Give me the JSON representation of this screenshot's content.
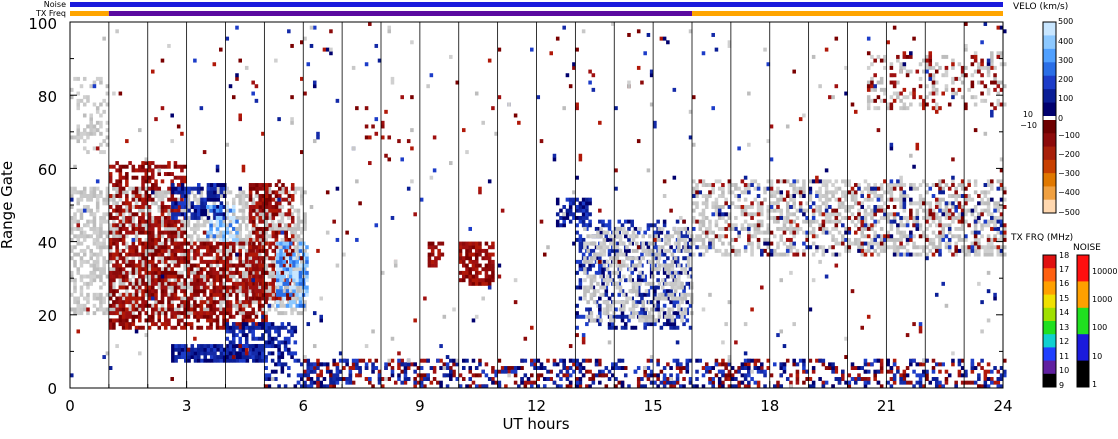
{
  "chart_data": {
    "type": "heatmap",
    "title": "",
    "xlabel": "UT hours",
    "ylabel": "Range Gate",
    "xlim": [
      0,
      24
    ],
    "ylim": [
      0,
      100
    ],
    "x_ticks": [
      "0",
      "3",
      "6",
      "9",
      "12",
      "15",
      "18",
      "21",
      "24"
    ],
    "y_ticks": [
      "0",
      "20",
      "40",
      "60",
      "80",
      "100"
    ],
    "hour_lines": [
      1,
      2,
      3,
      4,
      5,
      6,
      7,
      8,
      9,
      10,
      11,
      12,
      13,
      14,
      15,
      16,
      17,
      18,
      19,
      20,
      21,
      22,
      23
    ],
    "status_bars": {
      "noise_label": "Noise",
      "txfreq_label": "TX Freq",
      "noise_segments": [
        {
          "start": 0,
          "end": 24,
          "color": "#1a1adc"
        }
      ],
      "txfreq_segments": [
        {
          "start": 0,
          "end": 1,
          "color": "#ffa500"
        },
        {
          "start": 1,
          "end": 16,
          "color": "#5a0aa0"
        },
        {
          "start": 16,
          "end": 24,
          "color": "#ffa500"
        }
      ]
    },
    "velocity_colorbar": {
      "title": "VELO (km/s)",
      "ticks": [
        "500",
        "400",
        "300",
        "200",
        "100",
        "10",
        "0",
        "−10",
        "−100",
        "−200",
        "−300",
        "−400",
        "−500"
      ],
      "positive_colors": [
        "#c8e6ff",
        "#8cc8ff",
        "#50a0ff",
        "#2a6ee6",
        "#1c3cc8",
        "#0a1e96",
        "#00006e"
      ],
      "negative_colors": [
        "#6e0000",
        "#8c0a0a",
        "#a8200a",
        "#c84000",
        "#e07800",
        "#f0a040",
        "#ffd8b0"
      ]
    },
    "txfreq_colorbar": {
      "title": "TX FRQ (MHz)",
      "ticks": [
        "18",
        "17",
        "16",
        "15",
        "14",
        "13",
        "12",
        "11",
        "10",
        "9"
      ],
      "colors": [
        "#e01010",
        "#ff6010",
        "#ffa000",
        "#f0e000",
        "#a0e000",
        "#20e020",
        "#10d0d0",
        "#2040ff",
        "#6020a0",
        "#000000"
      ]
    },
    "noise_colorbar": {
      "title": "NOISE",
      "ticks": [
        "10000",
        "1000",
        "100",
        "10",
        "1"
      ],
      "colors": [
        "#ff1010",
        "#ffa000",
        "#20e020",
        "#1a1adc",
        "#000000"
      ]
    },
    "regions": [
      {
        "kind": "gray",
        "x0": 0.0,
        "x1": 6.0,
        "y0": 20,
        "y1": 55,
        "density": 0.55
      },
      {
        "kind": "gray",
        "x0": 0.0,
        "x1": 1.0,
        "y0": 64,
        "y1": 85,
        "density": 0.25
      },
      {
        "kind": "red",
        "x0": 1.0,
        "x1": 5.0,
        "y0": 16,
        "y1": 40,
        "density": 0.6
      },
      {
        "kind": "red",
        "x0": 1.0,
        "x1": 3.0,
        "y0": 40,
        "y1": 62,
        "density": 0.45
      },
      {
        "kind": "red",
        "x0": 4.6,
        "x1": 5.7,
        "y0": 24,
        "y1": 56,
        "density": 0.5
      },
      {
        "kind": "blue",
        "x0": 2.6,
        "x1": 4.0,
        "y0": 46,
        "y1": 56,
        "density": 0.6
      },
      {
        "kind": "lightblue",
        "x0": 3.5,
        "x1": 4.3,
        "y0": 40,
        "y1": 50,
        "density": 0.5
      },
      {
        "kind": "lightblue",
        "x0": 5.3,
        "x1": 6.1,
        "y0": 22,
        "y1": 40,
        "density": 0.6
      },
      {
        "kind": "blue",
        "x0": 2.6,
        "x1": 5.0,
        "y0": 7,
        "y1": 12,
        "density": 0.85
      },
      {
        "kind": "blue",
        "x0": 4.0,
        "x1": 5.8,
        "y0": 8,
        "y1": 18,
        "density": 0.6
      },
      {
        "kind": "blue",
        "x0": 5.0,
        "x1": 6.8,
        "y0": 0,
        "y1": 8,
        "density": 0.35
      },
      {
        "kind": "red",
        "x0": 9.2,
        "x1": 9.6,
        "y0": 33,
        "y1": 40,
        "density": 0.6
      },
      {
        "kind": "red",
        "x0": 10.0,
        "x1": 10.9,
        "y0": 28,
        "y1": 40,
        "density": 0.75
      },
      {
        "kind": "blue",
        "x0": 12.5,
        "x1": 13.4,
        "y0": 44,
        "y1": 52,
        "density": 0.6
      },
      {
        "kind": "blue",
        "x0": 13.0,
        "x1": 16.0,
        "y0": 16,
        "y1": 46,
        "density": 0.35
      },
      {
        "kind": "gray",
        "x0": 13.2,
        "x1": 16.0,
        "y0": 18,
        "y1": 44,
        "density": 0.4
      },
      {
        "kind": "gray",
        "x0": 16.0,
        "x1": 24.0,
        "y0": 36,
        "y1": 57,
        "density": 0.45
      },
      {
        "kind": "red",
        "x0": 16.0,
        "x1": 24.0,
        "y0": 36,
        "y1": 57,
        "density": 0.08
      },
      {
        "kind": "blue",
        "x0": 16.0,
        "x1": 24.0,
        "y0": 36,
        "y1": 57,
        "density": 0.06
      },
      {
        "kind": "gray",
        "x0": 20.5,
        "x1": 24.0,
        "y0": 76,
        "y1": 92,
        "density": 0.22
      },
      {
        "kind": "red",
        "x0": 20.5,
        "x1": 24.0,
        "y0": 76,
        "y1": 92,
        "density": 0.12
      },
      {
        "kind": "red",
        "x0": 6.0,
        "x1": 24.0,
        "y0": 0,
        "y1": 8,
        "density": 0.22
      },
      {
        "kind": "blue",
        "x0": 6.0,
        "x1": 24.0,
        "y0": 0,
        "y1": 8,
        "density": 0.22
      },
      {
        "kind": "red",
        "x0": 7.5,
        "x1": 8.8,
        "y0": 60,
        "y1": 80,
        "density": 0.08
      },
      {
        "kind": "red",
        "x0": 0.0,
        "x1": 24.0,
        "y0": 0,
        "y1": 100,
        "density": 0.006
      },
      {
        "kind": "blue",
        "x0": 0.0,
        "x1": 24.0,
        "y0": 0,
        "y1": 100,
        "density": 0.006
      },
      {
        "kind": "gray",
        "x0": 0.0,
        "x1": 24.0,
        "y0": 0,
        "y1": 100,
        "density": 0.005
      }
    ]
  }
}
